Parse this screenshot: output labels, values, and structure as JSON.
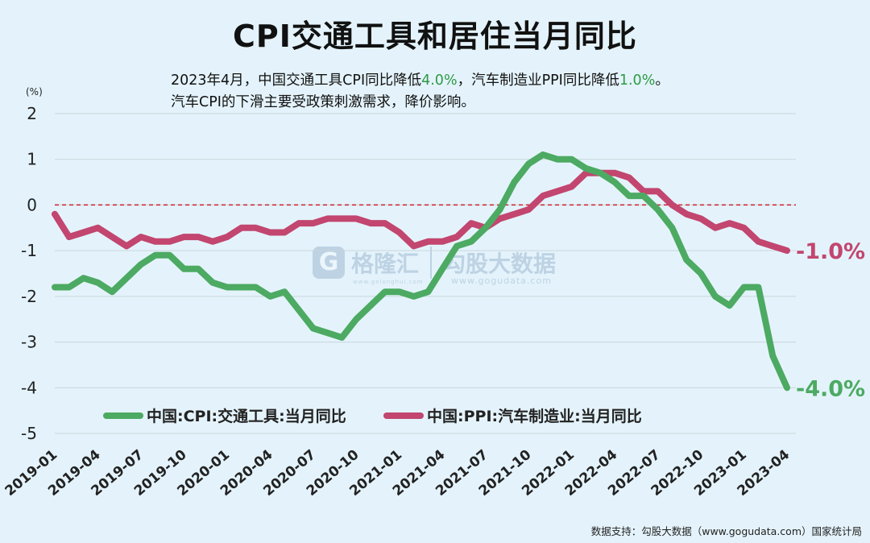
{
  "title": "CPI交通工具和居住当月同比",
  "subtitle": {
    "line1_a": "2023年4月，中国交通工具CPI同比降低",
    "line1_b": "4.0%",
    "line1_c": "，汽车制造业PPI同比降低",
    "line1_d": "1.0%",
    "line1_e": "。",
    "line2": "汽车CPI的下滑主要受政策刺激需求，降价影响。"
  },
  "unit": "(%)",
  "source": "数据支持：勾股大数据（www.gogudata.com）国家统计局",
  "watermark": {
    "logo": "G",
    "brand": "格隆汇",
    "brand_url": "www.gelonghui.com",
    "right": "勾股大数据",
    "right_url": "www.gogudata.com"
  },
  "colors": {
    "cpi": "#4caa62",
    "ppi": "#c2466f",
    "zero_line": "#d0202a",
    "background": "#e4f3fb"
  },
  "chart_data": {
    "type": "line",
    "title": "CPI交通工具和居住当月同比",
    "ylabel": "(%)",
    "ylim": [
      -5,
      2
    ],
    "yticks": [
      2,
      1,
      0,
      -1,
      -2,
      -3,
      -4,
      -5
    ],
    "grid": true,
    "legend_position": "bottom-left",
    "xtick_labels": [
      "2019-01",
      "2019-04",
      "2019-07",
      "2019-10",
      "2020-01",
      "2020-04",
      "2020-07",
      "2020-10",
      "2021-01",
      "2021-04",
      "2021-07",
      "2021-10",
      "2022-01",
      "2022-04",
      "2022-07",
      "2022-10",
      "2023-01",
      "2023-04"
    ],
    "x": [
      "2019-01",
      "2019-02",
      "2019-03",
      "2019-04",
      "2019-05",
      "2019-06",
      "2019-07",
      "2019-08",
      "2019-09",
      "2019-10",
      "2019-11",
      "2019-12",
      "2020-01",
      "2020-02",
      "2020-03",
      "2020-04",
      "2020-05",
      "2020-06",
      "2020-07",
      "2020-08",
      "2020-09",
      "2020-10",
      "2020-11",
      "2020-12",
      "2021-01",
      "2021-02",
      "2021-03",
      "2021-04",
      "2021-05",
      "2021-06",
      "2021-07",
      "2021-08",
      "2021-09",
      "2021-10",
      "2021-11",
      "2021-12",
      "2022-01",
      "2022-02",
      "2022-03",
      "2022-04",
      "2022-05",
      "2022-06",
      "2022-07",
      "2022-08",
      "2022-09",
      "2022-10",
      "2022-11",
      "2022-12",
      "2023-01",
      "2023-02",
      "2023-03",
      "2023-04"
    ],
    "series": [
      {
        "name": "中国:CPI:交通工具:当月同比",
        "end_label": "-4.0%",
        "values": [
          -1.8,
          -1.8,
          -1.6,
          -1.7,
          -1.9,
          -1.6,
          -1.3,
          -1.1,
          -1.1,
          -1.4,
          -1.4,
          -1.7,
          -1.8,
          -1.8,
          -1.8,
          -2.0,
          -1.9,
          -2.3,
          -2.7,
          -2.8,
          -2.9,
          -2.5,
          -2.2,
          -1.9,
          -1.9,
          -2.0,
          -1.9,
          -1.4,
          -0.9,
          -0.8,
          -0.5,
          -0.1,
          0.5,
          0.9,
          1.1,
          1.0,
          1.0,
          0.8,
          0.7,
          0.5,
          0.2,
          0.2,
          -0.1,
          -0.5,
          -1.2,
          -1.5,
          -2.0,
          -2.2,
          -1.8,
          -1.8,
          -3.3,
          -4.0
        ]
      },
      {
        "name": "中国:PPI:汽车制造业:当月同比",
        "end_label": "-1.0%",
        "values": [
          -0.2,
          -0.7,
          -0.6,
          -0.5,
          -0.7,
          -0.9,
          -0.7,
          -0.8,
          -0.8,
          -0.7,
          -0.7,
          -0.8,
          -0.7,
          -0.5,
          -0.5,
          -0.6,
          -0.6,
          -0.4,
          -0.4,
          -0.3,
          -0.3,
          -0.3,
          -0.4,
          -0.4,
          -0.6,
          -0.9,
          -0.8,
          -0.8,
          -0.7,
          -0.4,
          -0.5,
          -0.3,
          -0.2,
          -0.1,
          0.2,
          0.3,
          0.4,
          0.7,
          0.7,
          0.7,
          0.6,
          0.3,
          0.3,
          0.0,
          -0.2,
          -0.3,
          -0.5,
          -0.4,
          -0.5,
          -0.8,
          -0.9,
          -1.0
        ]
      }
    ]
  }
}
